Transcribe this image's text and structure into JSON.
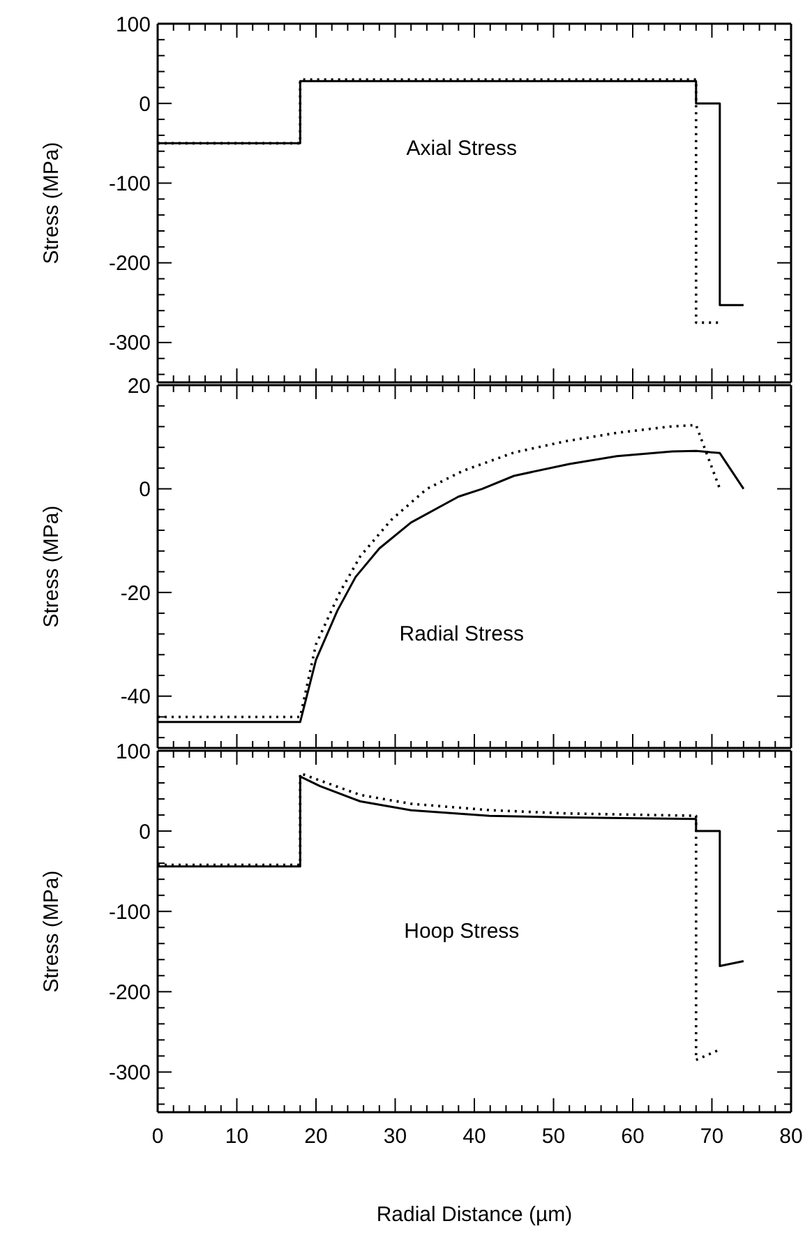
{
  "chart_data": [
    {
      "type": "line",
      "ylabel": "Stress (MPa)",
      "annotations": [
        "Axial Stress"
      ],
      "tick_labels": "y",
      "xlim": [
        0,
        80
      ],
      "xticks": [
        0,
        {
          "value": 2,
          "label": null
        },
        {
          "value": 4,
          "label": null
        },
        {
          "value": 6,
          "label": null
        },
        {
          "value": 8,
          "label": null
        },
        10,
        {
          "value": 12,
          "label": null
        },
        {
          "value": 14,
          "label": null
        },
        {
          "value": 16,
          "label": null
        },
        {
          "value": 18,
          "label": null
        },
        20,
        {
          "value": 22,
          "label": null
        },
        {
          "value": 24,
          "label": null
        },
        {
          "value": 26,
          "label": null
        },
        {
          "value": 28,
          "label": null
        },
        30,
        {
          "value": 32,
          "label": null
        },
        {
          "value": 34,
          "label": null
        },
        {
          "value": 36,
          "label": null
        },
        {
          "value": 38,
          "label": null
        },
        40,
        {
          "value": 42,
          "label": null
        },
        {
          "value": 44,
          "label": null
        },
        {
          "value": 46,
          "label": null
        },
        {
          "value": 48,
          "label": null
        },
        50,
        {
          "value": 52,
          "label": null
        },
        {
          "value": 54,
          "label": null
        },
        {
          "value": 56,
          "label": null
        },
        {
          "value": 58,
          "label": null
        },
        60,
        {
          "value": 62,
          "label": null
        },
        {
          "value": 64,
          "label": null
        },
        {
          "value": 66,
          "label": null
        },
        {
          "value": 68,
          "label": null
        },
        70,
        {
          "value": 72,
          "label": null
        },
        {
          "value": 74,
          "label": null
        },
        {
          "value": 76,
          "label": null
        },
        {
          "value": 78,
          "label": null
        },
        80
      ],
      "ylim": [
        -350,
        100
      ],
      "yticks": [
        {
          "value": -340,
          "label": null
        },
        {
          "value": -320,
          "label": null
        },
        -300,
        {
          "value": -280,
          "label": null
        },
        {
          "value": -260,
          "label": null
        },
        {
          "value": -240,
          "label": null
        },
        {
          "value": -220,
          "label": null
        },
        -200,
        {
          "value": -180,
          "label": null
        },
        {
          "value": -160,
          "label": null
        },
        {
          "value": -140,
          "label": null
        },
        {
          "value": -120,
          "label": null
        },
        -100,
        {
          "value": -80,
          "label": null
        },
        {
          "value": -60,
          "label": null
        },
        {
          "value": -40,
          "label": null
        },
        {
          "value": -20,
          "label": null
        },
        0,
        {
          "value": 20,
          "label": null
        },
        {
          "value": 40,
          "label": null
        },
        {
          "value": 60,
          "label": null
        },
        {
          "value": 80,
          "label": null
        },
        100
      ],
      "legend": false,
      "marker": "none",
      "series": [
        {
          "color": "#000000",
          "line_style": "solid",
          "x": [
            0,
            18,
            18,
            68,
            68,
            71,
            71,
            74
          ],
          "values": [
            -50,
            -50,
            28,
            28,
            0,
            0,
            -253,
            -253
          ]
        },
        {
          "color": "#000000",
          "line_style": "dotted",
          "x": [
            0,
            18,
            18,
            68,
            68,
            71
          ],
          "values": [
            -50,
            -50,
            30,
            30,
            -275,
            -275
          ]
        }
      ]
    },
    {
      "type": "line",
      "ylabel": "Stress (MPa)",
      "annotations": [
        "Radial Stress"
      ],
      "tick_labels": "y",
      "xlim": [
        0,
        80
      ],
      "xticks": [
        0,
        {
          "value": 2,
          "label": null
        },
        {
          "value": 4,
          "label": null
        },
        {
          "value": 6,
          "label": null
        },
        {
          "value": 8,
          "label": null
        },
        10,
        {
          "value": 12,
          "label": null
        },
        {
          "value": 14,
          "label": null
        },
        {
          "value": 16,
          "label": null
        },
        {
          "value": 18,
          "label": null
        },
        20,
        {
          "value": 22,
          "label": null
        },
        {
          "value": 24,
          "label": null
        },
        {
          "value": 26,
          "label": null
        },
        {
          "value": 28,
          "label": null
        },
        30,
        {
          "value": 32,
          "label": null
        },
        {
          "value": 34,
          "label": null
        },
        {
          "value": 36,
          "label": null
        },
        {
          "value": 38,
          "label": null
        },
        40,
        {
          "value": 42,
          "label": null
        },
        {
          "value": 44,
          "label": null
        },
        {
          "value": 46,
          "label": null
        },
        {
          "value": 48,
          "label": null
        },
        50,
        {
          "value": 52,
          "label": null
        },
        {
          "value": 54,
          "label": null
        },
        {
          "value": 56,
          "label": null
        },
        {
          "value": 58,
          "label": null
        },
        60,
        {
          "value": 62,
          "label": null
        },
        {
          "value": 64,
          "label": null
        },
        {
          "value": 66,
          "label": null
        },
        {
          "value": 68,
          "label": null
        },
        70,
        {
          "value": 72,
          "label": null
        },
        {
          "value": 74,
          "label": null
        },
        {
          "value": 76,
          "label": null
        },
        {
          "value": 78,
          "label": null
        },
        80
      ],
      "ylim": [
        -50,
        20
      ],
      "yticks": [
        {
          "value": -48,
          "label": null
        },
        {
          "value": -44,
          "label": null
        },
        -40,
        {
          "value": -36,
          "label": null
        },
        {
          "value": -32,
          "label": null
        },
        {
          "value": -28,
          "label": null
        },
        {
          "value": -24,
          "label": null
        },
        -20,
        {
          "value": -16,
          "label": null
        },
        {
          "value": -12,
          "label": null
        },
        {
          "value": -8,
          "label": null
        },
        {
          "value": -4,
          "label": null
        },
        0,
        {
          "value": 4,
          "label": null
        },
        {
          "value": 8,
          "label": null
        },
        {
          "value": 12,
          "label": null
        },
        {
          "value": 16,
          "label": null
        },
        20
      ],
      "legend": false,
      "marker": "none",
      "series": [
        {
          "color": "#000000",
          "line_style": "solid",
          "x": [
            0,
            18,
            20,
            22.7,
            25,
            28,
            32,
            38,
            41,
            45,
            52,
            58,
            65,
            68,
            71,
            74
          ],
          "values": [
            -45,
            -45,
            -33,
            -23.5,
            -17,
            -11.5,
            -6.5,
            -1.5,
            0,
            2.5,
            4.8,
            6.3,
            7.2,
            7.3,
            6.9,
            0
          ]
        },
        {
          "color": "#000000",
          "line_style": "dotted",
          "x": [
            0,
            18,
            20,
            23,
            25.6,
            29.5,
            34,
            38.6,
            45,
            51.6,
            58,
            64.6,
            68,
            71
          ],
          "values": [
            -44,
            -44,
            -30,
            -20,
            -13,
            -6,
            0,
            3.5,
            7,
            9.2,
            10.8,
            12,
            12.3,
            0
          ]
        }
      ]
    },
    {
      "type": "line",
      "ylabel": "Stress (MPa)",
      "xlabel": "Radial Distance (µm)",
      "annotations": [
        "Hoop Stress"
      ],
      "xlim": [
        0,
        80
      ],
      "xticks": [
        0,
        {
          "value": 2,
          "label": null
        },
        {
          "value": 4,
          "label": null
        },
        {
          "value": 6,
          "label": null
        },
        {
          "value": 8,
          "label": null
        },
        10,
        {
          "value": 12,
          "label": null
        },
        {
          "value": 14,
          "label": null
        },
        {
          "value": 16,
          "label": null
        },
        {
          "value": 18,
          "label": null
        },
        20,
        {
          "value": 22,
          "label": null
        },
        {
          "value": 24,
          "label": null
        },
        {
          "value": 26,
          "label": null
        },
        {
          "value": 28,
          "label": null
        },
        30,
        {
          "value": 32,
          "label": null
        },
        {
          "value": 34,
          "label": null
        },
        {
          "value": 36,
          "label": null
        },
        {
          "value": 38,
          "label": null
        },
        40,
        {
          "value": 42,
          "label": null
        },
        {
          "value": 44,
          "label": null
        },
        {
          "value": 46,
          "label": null
        },
        {
          "value": 48,
          "label": null
        },
        50,
        {
          "value": 52,
          "label": null
        },
        {
          "value": 54,
          "label": null
        },
        {
          "value": 56,
          "label": null
        },
        {
          "value": 58,
          "label": null
        },
        60,
        {
          "value": 62,
          "label": null
        },
        {
          "value": 64,
          "label": null
        },
        {
          "value": 66,
          "label": null
        },
        {
          "value": 68,
          "label": null
        },
        70,
        {
          "value": 72,
          "label": null
        },
        {
          "value": 74,
          "label": null
        },
        {
          "value": 76,
          "label": null
        },
        {
          "value": 78,
          "label": null
        },
        80
      ],
      "ylim": [
        -350,
        100
      ],
      "yticks": [
        {
          "value": -340,
          "label": null
        },
        {
          "value": -320,
          "label": null
        },
        -300,
        {
          "value": -280,
          "label": null
        },
        {
          "value": -260,
          "label": null
        },
        {
          "value": -240,
          "label": null
        },
        {
          "value": -220,
          "label": null
        },
        -200,
        {
          "value": -180,
          "label": null
        },
        {
          "value": -160,
          "label": null
        },
        {
          "value": -140,
          "label": null
        },
        {
          "value": -120,
          "label": null
        },
        -100,
        {
          "value": -80,
          "label": null
        },
        {
          "value": -60,
          "label": null
        },
        {
          "value": -40,
          "label": null
        },
        {
          "value": -20,
          "label": null
        },
        0,
        {
          "value": 20,
          "label": null
        },
        {
          "value": 40,
          "label": null
        },
        {
          "value": 60,
          "label": null
        },
        {
          "value": 80,
          "label": null
        },
        100
      ],
      "legend": false,
      "marker": "none",
      "series": [
        {
          "color": "#000000",
          "line_style": "solid",
          "x": [
            0,
            18,
            18,
            20.5,
            25.6,
            32,
            41.9,
            51.6,
            68,
            68,
            71,
            71,
            74
          ],
          "values": [
            -44,
            -44,
            68,
            56,
            37,
            26,
            19,
            17,
            15,
            0,
            0,
            -168,
            -162
          ]
        },
        {
          "color": "#000000",
          "line_style": "dotted",
          "x": [
            0,
            18,
            18,
            20.5,
            25.6,
            32,
            42,
            51.6,
            68,
            68,
            71
          ],
          "values": [
            -42,
            -42,
            72,
            63,
            45,
            34,
            26,
            22,
            19,
            -285,
            -272
          ]
        }
      ]
    }
  ]
}
